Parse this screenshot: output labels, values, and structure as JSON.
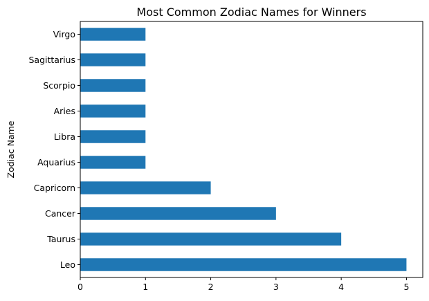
{
  "chart_data": {
    "type": "bar",
    "orientation": "horizontal",
    "title": "Most Common Zodiac Names for Winners",
    "xlabel": "",
    "ylabel": "Zodiac Name",
    "categories": [
      "Leo",
      "Taurus",
      "Cancer",
      "Capricorn",
      "Aquarius",
      "Libra",
      "Aries",
      "Scorpio",
      "Sagittarius",
      "Virgo"
    ],
    "values": [
      5,
      4,
      3,
      2,
      1,
      1,
      1,
      1,
      1,
      1
    ],
    "xlim": [
      0,
      5.25
    ],
    "xticks": [
      0,
      1,
      2,
      3,
      4,
      5
    ],
    "bar_color": "#1f77b4",
    "grid": false,
    "legend": "none"
  }
}
